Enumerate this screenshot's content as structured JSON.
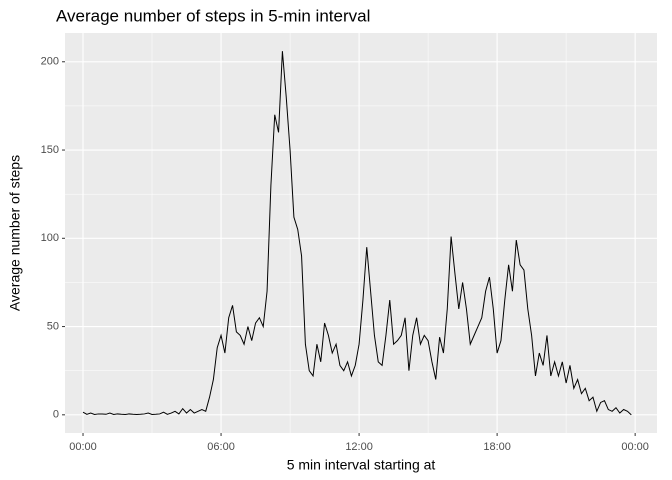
{
  "chart_data": {
    "type": "line",
    "title": "Average number of steps in 5-min interval",
    "x_label": "5 min interval starting at",
    "y_label": "Average number of steps",
    "x": [
      0,
      10,
      20,
      30,
      40,
      50,
      60,
      70,
      80,
      90,
      100,
      110,
      120,
      130,
      140,
      150,
      160,
      170,
      180,
      190,
      200,
      210,
      220,
      230,
      240,
      250,
      260,
      270,
      280,
      290,
      300,
      310,
      320,
      330,
      340,
      350,
      360,
      370,
      380,
      390,
      400,
      410,
      420,
      430,
      440,
      450,
      460,
      470,
      480,
      490,
      500,
      510,
      520,
      530,
      540,
      550,
      560,
      570,
      580,
      590,
      600,
      610,
      620,
      630,
      640,
      650,
      660,
      670,
      680,
      690,
      700,
      710,
      720,
      730,
      740,
      750,
      760,
      770,
      780,
      790,
      800,
      810,
      820,
      830,
      840,
      850,
      860,
      870,
      880,
      890,
      900,
      910,
      920,
      930,
      940,
      950,
      960,
      970,
      980,
      990,
      1000,
      1010,
      1020,
      1030,
      1040,
      1050,
      1060,
      1070,
      1080,
      1090,
      1100,
      1110,
      1120,
      1130,
      1140,
      1150,
      1160,
      1170,
      1180,
      1190,
      1200,
      1210,
      1220,
      1230,
      1240,
      1250,
      1260,
      1270,
      1280,
      1290,
      1300,
      1310,
      1320,
      1330,
      1340,
      1350,
      1360,
      1370,
      1380,
      1390,
      1400,
      1410,
      1420,
      1430
    ],
    "series": [
      {
        "name": "steps",
        "color": "#000000",
        "values": [
          1.5,
          0.3,
          1,
          0.2,
          0.5,
          0.5,
          0.3,
          1,
          0.2,
          0.5,
          0.3,
          0.2,
          0.5,
          0.3,
          0.2,
          0.3,
          0.5,
          1,
          0.2,
          0.3,
          0.5,
          1.5,
          0.3,
          1,
          2,
          0.5,
          3.5,
          1,
          3,
          1,
          2,
          3,
          2,
          10,
          20,
          38,
          45,
          35,
          55,
          62,
          47,
          45,
          40,
          50,
          42,
          52,
          55,
          50,
          70,
          130,
          170,
          160,
          206,
          180,
          150,
          112,
          105,
          90,
          40,
          25,
          22,
          40,
          30,
          52,
          45,
          35,
          40,
          28,
          25,
          30,
          22,
          28,
          40,
          65,
          95,
          70,
          45,
          30,
          28,
          45,
          65,
          40,
          42,
          45,
          55,
          25,
          45,
          55,
          40,
          45,
          42,
          30,
          20,
          44,
          35,
          60,
          101,
          80,
          60,
          75,
          60,
          40,
          45,
          50,
          55,
          70,
          78,
          60,
          35,
          42,
          65,
          85,
          70,
          99,
          85,
          82,
          60,
          45,
          22,
          35,
          28,
          45,
          22,
          30,
          22,
          30,
          18,
          28,
          15,
          20,
          12,
          15,
          8,
          10,
          2,
          7,
          8,
          3,
          2,
          4,
          1,
          3,
          2,
          0
        ]
      }
    ],
    "xlim": [
      -47,
      1497
    ],
    "xticks": [
      {
        "value": 0,
        "label": "00:00"
      },
      {
        "value": 360,
        "label": "06:00"
      },
      {
        "value": 720,
        "label": "12:00"
      },
      {
        "value": 1080,
        "label": "18:00"
      },
      {
        "value": 1440,
        "label": "00:00"
      }
    ],
    "ylim": [
      -10.3,
      216.3
    ],
    "yticks": [
      0,
      50,
      100,
      150,
      200
    ],
    "grid": true
  }
}
